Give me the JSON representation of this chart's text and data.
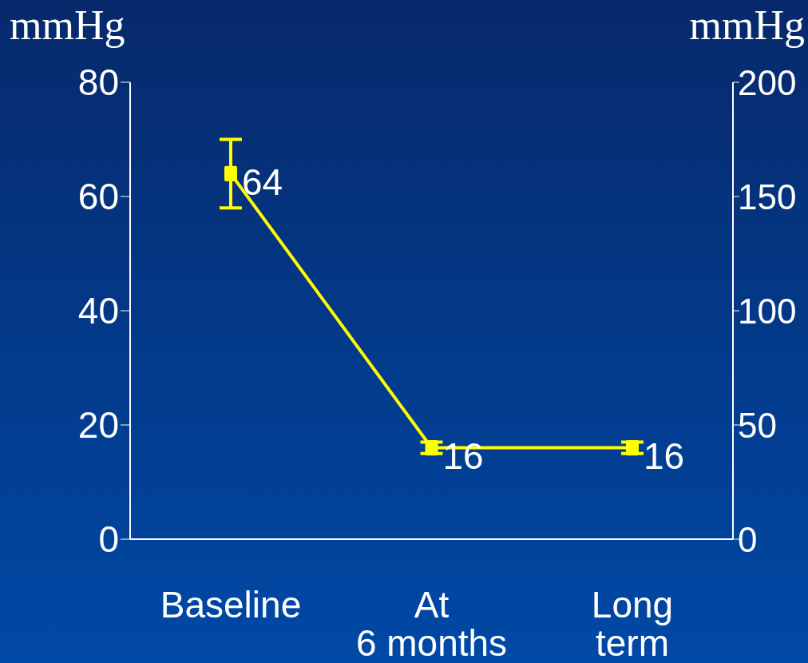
{
  "chart_data": {
    "type": "line",
    "ylabel": "mmHg",
    "y2label": "mmHg",
    "categories": [
      "Baseline",
      "At\n6 months",
      "Long\nterm"
    ],
    "series": [
      {
        "color": "#ffff00",
        "values": [
          64,
          16,
          16
        ],
        "errors": [
          [
            58,
            70
          ],
          1,
          1
        ]
      }
    ],
    "ylim": [
      0,
      80
    ],
    "yticks": [
      0,
      20,
      40,
      60,
      80
    ],
    "y2lim": [
      0,
      200
    ],
    "y2ticks": [
      0,
      50,
      100,
      150,
      200
    ],
    "marker": "square",
    "data_labels": true,
    "grid": false,
    "legend": false
  }
}
